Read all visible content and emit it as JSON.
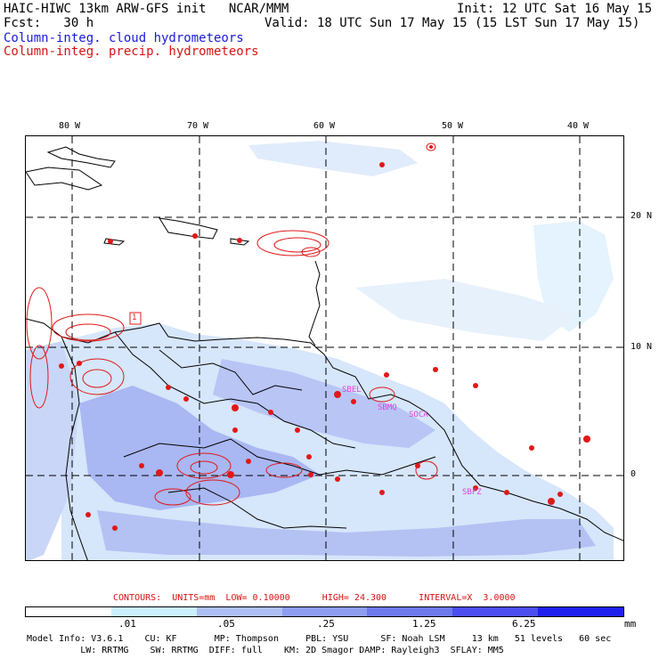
{
  "header": {
    "line1_left": "HAIC-HIWC 13km ARW-GFS init   NCAR/MMM",
    "line1_right": "Init: 12 UTC Sat 16 May 15",
    "line2_left": "Fcst:   30 h",
    "line2_right": "Valid: 18 UTC Sun 17 May 15 (15 LST Sun 17 May 15)",
    "field1": "Column-integ. cloud hydrometeors",
    "field2": "Column-integ. precip. hydrometeors"
  },
  "map": {
    "lon_labels": [
      "80 W",
      "70 W",
      "60 W",
      "50 W",
      "40 W"
    ],
    "lat_labels": [
      "20 N",
      "10 N",
      "0"
    ],
    "station_labels": [
      "SBEL",
      "SBMQ",
      "SOCA",
      "SBFZ"
    ],
    "contour_label": "1"
  },
  "colors": {
    "cloud_field": "#7f8cf0",
    "precip_contour": "#e01818",
    "coast": "#000000",
    "blue_text": "#1a1ad6",
    "red_text": "#d41414"
  },
  "contour_info": "CONTOURS:  UNITS=mm  LOW= 0.10000      HIGH= 24.300      INTERVAL=X  3.0000",
  "colorbar": {
    "ticks": [
      ".01",
      ".05",
      ".25",
      "1.25",
      "6.25"
    ],
    "unit": "mm",
    "colors": [
      "#ffffff",
      "#ccefff",
      "#aebff5",
      "#8e9df0",
      "#6e79ec",
      "#4c4ef0",
      "#2020ee"
    ]
  },
  "footer": {
    "line1": "Model Info: V3.6.1    CU: KF       MP: Thompson     PBL: YSU      SF: Noah LSM     13 km   51 levels   60 sec",
    "line2": "          LW: RRTMG    SW: RRTMG  DIFF: full    KM: 2D Smagor DAMP: Rayleigh3  SFLAY: MM5"
  }
}
